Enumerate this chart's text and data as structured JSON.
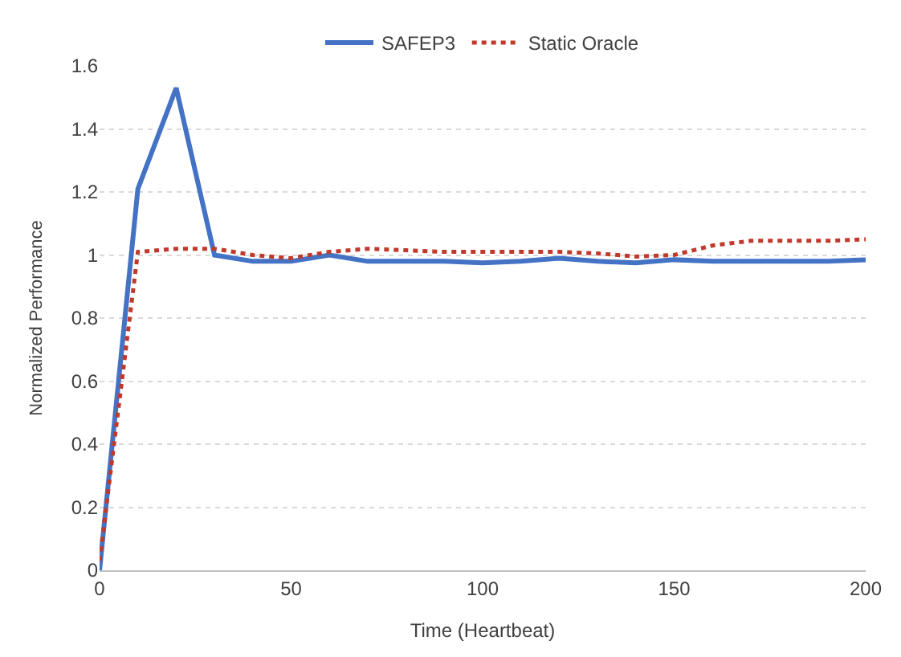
{
  "chart_data": {
    "type": "line",
    "xlabel": "Time (Heartbeat)",
    "ylabel": "Normalized Performance",
    "x": [
      0,
      10,
      20,
      30,
      40,
      50,
      60,
      70,
      80,
      90,
      100,
      110,
      120,
      130,
      140,
      150,
      160,
      170,
      180,
      190,
      200
    ],
    "series": [
      {
        "name": "SAFEP3",
        "color": "#4472c4",
        "line_style": "solid",
        "values": [
          0.0,
          1.21,
          1.53,
          1.0,
          0.98,
          0.98,
          1.0,
          0.98,
          0.98,
          0.98,
          0.975,
          0.98,
          0.99,
          0.98,
          0.975,
          0.985,
          0.98,
          0.98,
          0.98,
          0.98,
          0.985
        ]
      },
      {
        "name": "Static Oracle",
        "color": "#c0392b",
        "line_style": "dotted",
        "values": [
          0.03,
          1.01,
          1.02,
          1.02,
          1.0,
          0.99,
          1.01,
          1.02,
          1.015,
          1.01,
          1.01,
          1.01,
          1.01,
          1.005,
          0.995,
          1.0,
          1.03,
          1.045,
          1.045,
          1.045,
          1.05
        ]
      }
    ],
    "xlim": [
      0,
      200
    ],
    "xticks": [
      0,
      50,
      100,
      150,
      200
    ],
    "ylim": [
      0,
      1.6
    ],
    "yticks": [
      0,
      0.2,
      0.4,
      0.6,
      0.8,
      1,
      1.2,
      1.4,
      1.6
    ],
    "grid": "y",
    "legend": "top"
  }
}
